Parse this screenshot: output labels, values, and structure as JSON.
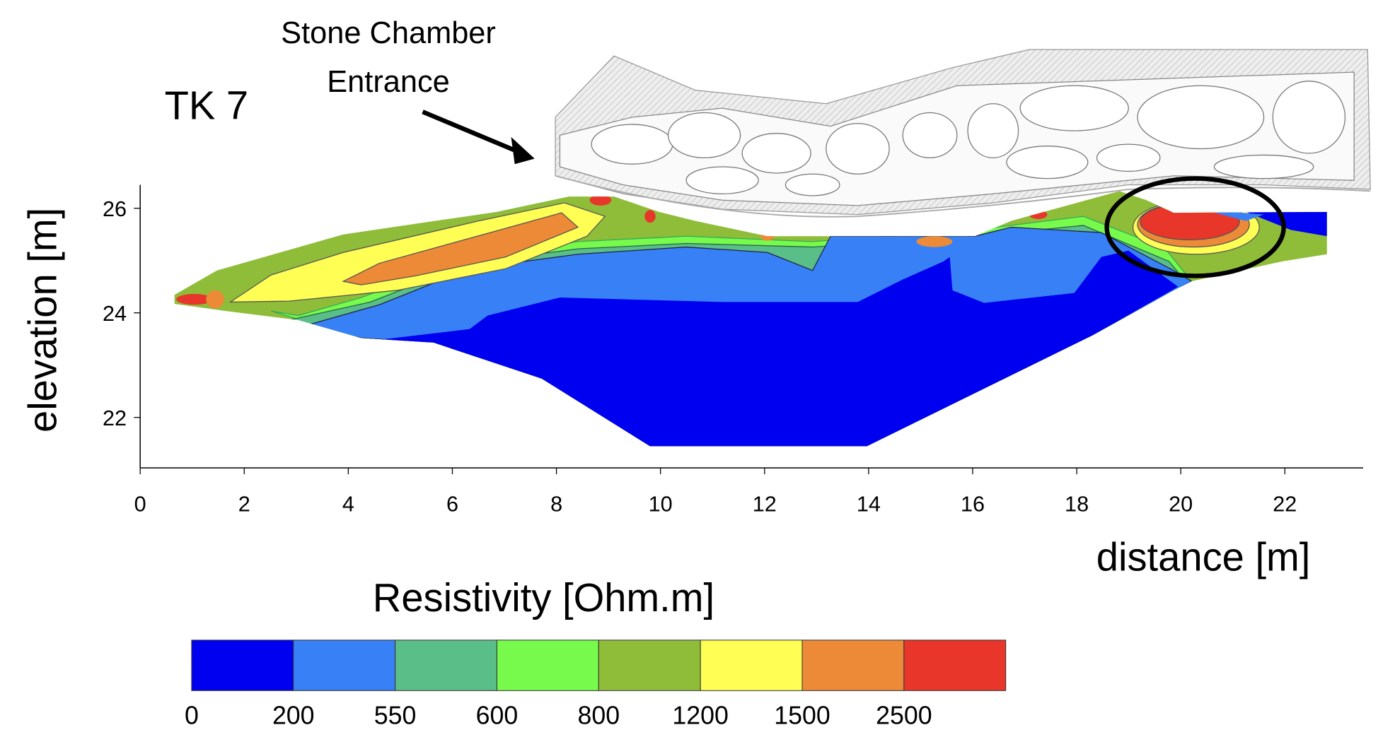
{
  "annotation": {
    "site_label": "TK 7",
    "feature_label_line1": "Stone Chamber",
    "feature_label_line2": "Entrance"
  },
  "chart_data": {
    "type": "heatmap",
    "subtype": "resistivity tomography section (filled contours)",
    "xlabel": "distance [m]",
    "ylabel": "elevation [m]",
    "xlim": [
      0,
      23.5
    ],
    "ylim": [
      21.0,
      26.5
    ],
    "xticks": [
      "0",
      "2",
      "4",
      "6",
      "8",
      "10",
      "12",
      "14",
      "16",
      "18",
      "20",
      "22"
    ],
    "yticks": [
      "22",
      "24",
      "26"
    ],
    "grid": false,
    "colorbar": {
      "title": "Resistivity [Ohm.m]",
      "placement": "bottom",
      "levels": [
        "0",
        "200",
        "550",
        "600",
        "800",
        "1200",
        "1500",
        "2500"
      ],
      "colors": [
        "#0000f0",
        "#3880f5",
        "#5abe88",
        "#78fa4c",
        "#8fbd3a",
        "#fefe54",
        "#ec8a38",
        "#e8362a"
      ]
    },
    "highlight": {
      "shape": "ellipse",
      "center_distance_m": 20.3,
      "center_elevation_m": 25.6,
      "note": "high resistivity anomaly (>2500 Ohm.m)"
    }
  }
}
